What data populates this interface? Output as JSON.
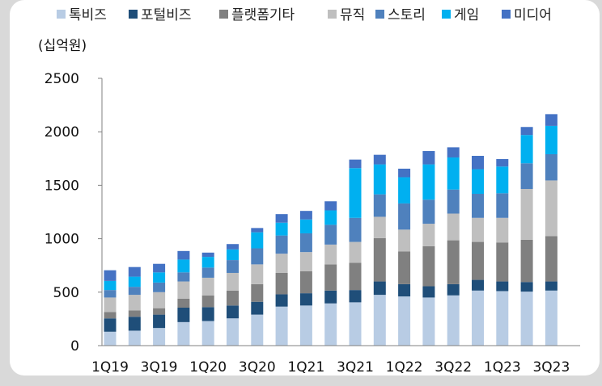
{
  "chart_data": {
    "type": "bar",
    "stacked": true,
    "unit_label": "(십억원)",
    "title": "",
    "xlabel": "",
    "ylabel": "",
    "ylim": [
      0,
      2500
    ],
    "yticks": [
      "0",
      "500",
      "1000",
      "1500",
      "2000",
      "2500"
    ],
    "grid": false,
    "legend_position": "top",
    "categories": [
      "1Q19",
      "2Q19",
      "3Q19",
      "4Q19",
      "1Q20",
      "2Q20",
      "3Q20",
      "4Q20",
      "1Q21",
      "2Q21",
      "3Q21",
      "4Q21",
      "1Q22",
      "2Q22",
      "3Q22",
      "4Q22",
      "1Q23",
      "2Q23",
      "3Q23"
    ],
    "xtick_labels": [
      "1Q19",
      "",
      "3Q19",
      "",
      "1Q20",
      "",
      "3Q20",
      "",
      "1Q21",
      "",
      "3Q21",
      "",
      "1Q22",
      "",
      "3Q22",
      "",
      "1Q23",
      "",
      "3Q23"
    ],
    "series": [
      {
        "name": "톡비즈",
        "color": "#b8cce4",
        "values": [
          130,
          140,
          165,
          220,
          230,
          255,
          290,
          365,
          375,
          395,
          405,
          475,
          460,
          450,
          470,
          515,
          510,
          505,
          515
        ]
      },
      {
        "name": "포털비즈",
        "color": "#1f4e79",
        "values": [
          125,
          130,
          125,
          135,
          130,
          120,
          120,
          115,
          115,
          120,
          115,
          125,
          115,
          105,
          105,
          100,
          90,
          90,
          85
        ]
      },
      {
        "name": "플랫폼기타",
        "color": "#808080",
        "values": [
          60,
          60,
          60,
          85,
          110,
          140,
          165,
          200,
          205,
          245,
          255,
          405,
          305,
          375,
          410,
          355,
          365,
          395,
          425
        ]
      },
      {
        "name": "뮤직",
        "color": "#bfbfbf",
        "values": [
          135,
          145,
          150,
          160,
          165,
          165,
          185,
          180,
          180,
          185,
          195,
          200,
          205,
          210,
          250,
          225,
          230,
          475,
          520
        ]
      },
      {
        "name": "스토리",
        "color": "#4f81bd",
        "values": [
          70,
          75,
          90,
          85,
          95,
          120,
          150,
          170,
          175,
          185,
          225,
          210,
          245,
          225,
          225,
          225,
          230,
          240,
          245
        ]
      },
      {
        "name": "게임",
        "color": "#00b0f0",
        "values": [
          85,
          95,
          95,
          120,
          100,
          100,
          150,
          120,
          130,
          135,
          465,
          280,
          245,
          330,
          300,
          230,
          250,
          265,
          265
        ]
      },
      {
        "name": "미디어",
        "color": "#4472c4",
        "values": [
          100,
          90,
          80,
          80,
          40,
          50,
          40,
          80,
          80,
          85,
          80,
          90,
          80,
          125,
          95,
          125,
          70,
          75,
          110
        ]
      }
    ]
  }
}
